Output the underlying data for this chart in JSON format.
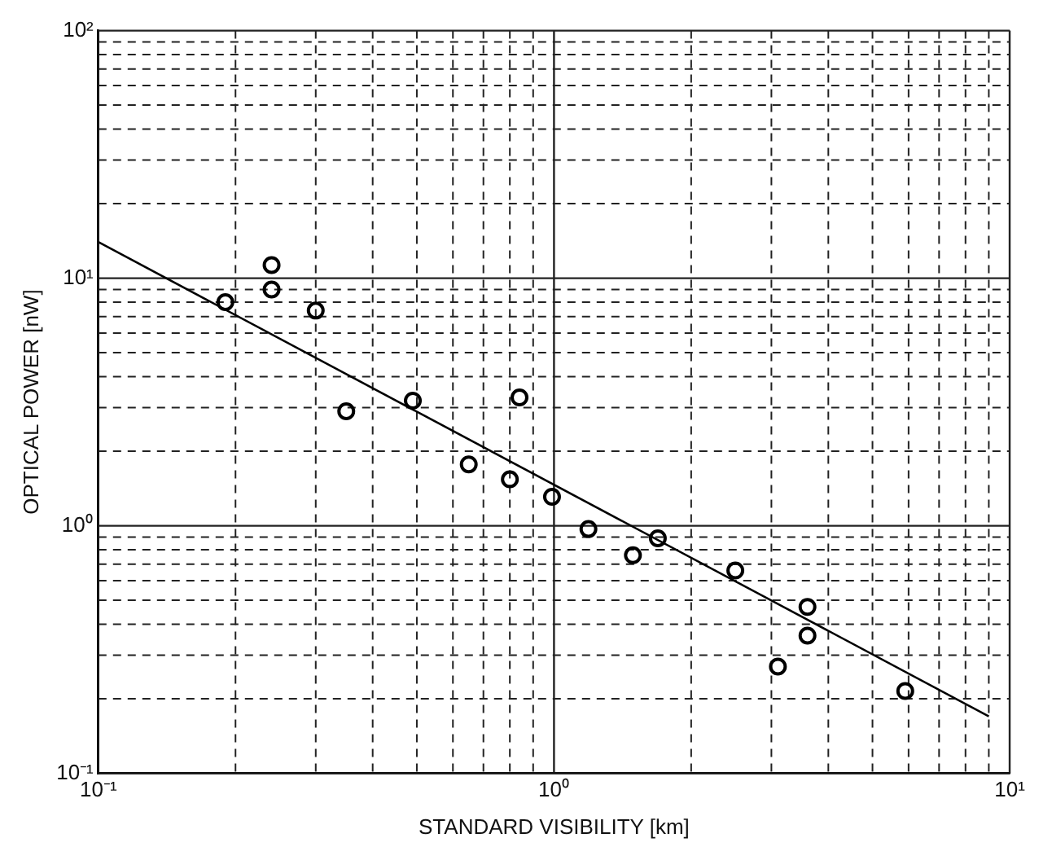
{
  "chart_data": {
    "type": "scatter",
    "xlabel": "STANDARD VISIBILITY [km]",
    "ylabel": "OPTICAL POWER [nW]",
    "log": "xy",
    "grid": true,
    "xlim": [
      0.1,
      10
    ],
    "ylim": [
      0.1,
      100
    ],
    "xticks": [
      {
        "value": 0.1,
        "label": "10⁻¹"
      },
      {
        "value": 0.2,
        "label": null
      },
      {
        "value": 0.3,
        "label": null
      },
      {
        "value": 0.4,
        "label": null
      },
      {
        "value": 0.5,
        "label": null
      },
      {
        "value": 0.6,
        "label": null
      },
      {
        "value": 0.7,
        "label": null
      },
      {
        "value": 0.8,
        "label": null
      },
      {
        "value": 0.9,
        "label": null
      },
      {
        "value": 1,
        "label": "10⁰"
      },
      {
        "value": 2,
        "label": null
      },
      {
        "value": 3,
        "label": null
      },
      {
        "value": 4,
        "label": null
      },
      {
        "value": 5,
        "label": null
      },
      {
        "value": 6,
        "label": null
      },
      {
        "value": 7,
        "label": null
      },
      {
        "value": 8,
        "label": null
      },
      {
        "value": 9,
        "label": null
      },
      {
        "value": 10,
        "label": "10¹"
      }
    ],
    "yticks": [
      {
        "value": 0.1,
        "label": "10⁻¹"
      },
      {
        "value": 0.2,
        "label": null
      },
      {
        "value": 0.3,
        "label": null
      },
      {
        "value": 0.4,
        "label": null
      },
      {
        "value": 0.5,
        "label": null
      },
      {
        "value": 0.6,
        "label": null
      },
      {
        "value": 0.7,
        "label": null
      },
      {
        "value": 0.8,
        "label": null
      },
      {
        "value": 0.9,
        "label": null
      },
      {
        "value": 1,
        "label": "10⁰"
      },
      {
        "value": 2,
        "label": null
      },
      {
        "value": 3,
        "label": null
      },
      {
        "value": 4,
        "label": null
      },
      {
        "value": 5,
        "label": null
      },
      {
        "value": 6,
        "label": null
      },
      {
        "value": 7,
        "label": null
      },
      {
        "value": 8,
        "label": null
      },
      {
        "value": 9,
        "label": null
      },
      {
        "value": 10,
        "label": "10¹"
      },
      {
        "value": 20,
        "label": null
      },
      {
        "value": 30,
        "label": null
      },
      {
        "value": 40,
        "label": null
      },
      {
        "value": 50,
        "label": null
      },
      {
        "value": 60,
        "label": null
      },
      {
        "value": 70,
        "label": null
      },
      {
        "value": 80,
        "label": null
      },
      {
        "value": 90,
        "label": null
      },
      {
        "value": 100,
        "label": "10²"
      }
    ],
    "series": [
      {
        "color": "#000000",
        "marker": "circle",
        "x": [
          0.19,
          0.24,
          0.24,
          0.3,
          0.35,
          0.49,
          0.84,
          0.65,
          0.8,
          0.99,
          1.19,
          1.49,
          1.69,
          2.5,
          3.1,
          3.6,
          3.6,
          5.9
        ],
        "values": [
          8.0,
          11.3,
          9.0,
          7.4,
          2.9,
          3.2,
          3.3,
          1.77,
          1.54,
          1.31,
          0.97,
          0.76,
          0.89,
          0.66,
          0.27,
          0.47,
          0.36,
          0.215
        ]
      },
      {
        "type": "line",
        "marker": "none",
        "color": "#000000",
        "x": [
          0.1,
          9
        ],
        "values": [
          14,
          0.17
        ]
      }
    ]
  }
}
